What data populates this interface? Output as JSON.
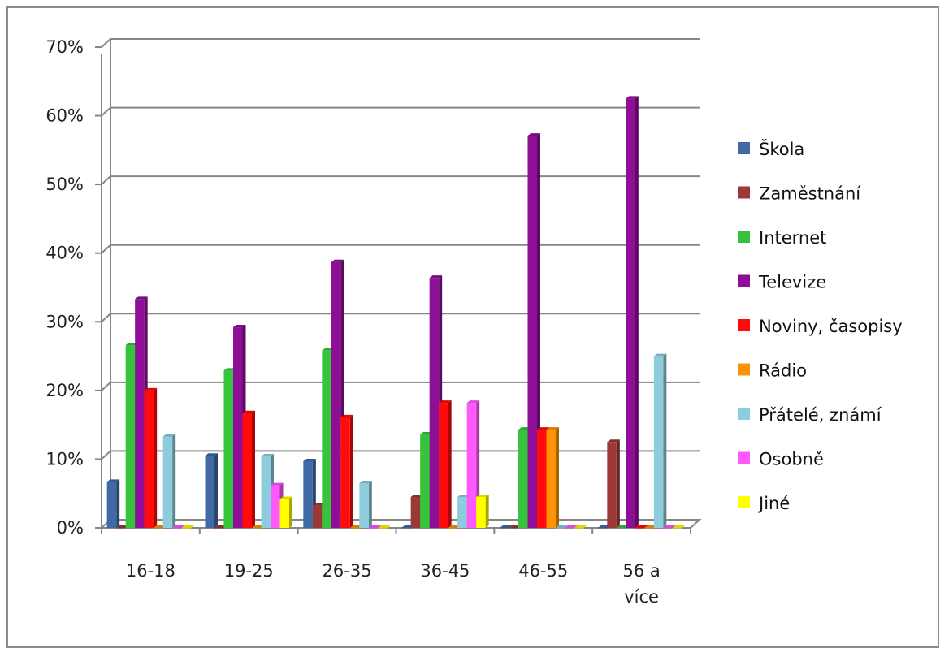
{
  "chart_data": {
    "type": "bar",
    "title": "",
    "xlabel": "",
    "ylabel": "",
    "ylim": [
      0,
      70
    ],
    "y_ticks": [
      "0%",
      "10%",
      "20%",
      "30%",
      "40%",
      "50%",
      "60%",
      "70%"
    ],
    "categories": [
      "16-18",
      "19-25",
      "26-35",
      "36-45",
      "46-55",
      "56 a více"
    ],
    "grid": true,
    "legend_position": "right",
    "series": [
      {
        "name": "Škola",
        "color": "#3f6aa6",
        "values": [
          6.7,
          10.5,
          9.7,
          0,
          0,
          0
        ]
      },
      {
        "name": "Zaměstnání",
        "color": "#9a3936",
        "values": [
          0,
          0,
          3.2,
          4.5,
          0,
          12.5
        ]
      },
      {
        "name": "Internet",
        "color": "#35c43b",
        "values": [
          26.6,
          22.9,
          25.8,
          13.6,
          14.3,
          0
        ]
      },
      {
        "name": "Televize",
        "color": "#8e0f96",
        "values": [
          33.3,
          29.2,
          38.7,
          36.4,
          57.1,
          62.5
        ]
      },
      {
        "name": "Noviny, časopisy",
        "color": "#ff0b0b",
        "values": [
          20,
          16.7,
          16.1,
          18.2,
          14.3,
          0
        ]
      },
      {
        "name": "Rádio",
        "color": "#ff9307",
        "values": [
          0,
          0,
          0,
          0,
          14.3,
          0
        ]
      },
      {
        "name": "Přátelé, známí",
        "color": "#8dccdc",
        "values": [
          13.3,
          10.4,
          6.5,
          4.5,
          0,
          25
        ]
      },
      {
        "name": "Osobně",
        "color": "#ff58ff",
        "values": [
          0,
          6.2,
          0,
          18.2,
          0,
          0
        ]
      },
      {
        "name": "Jiné",
        "color": "#ffff00",
        "values": [
          0,
          4.2,
          0,
          4.5,
          0,
          0
        ]
      }
    ]
  }
}
